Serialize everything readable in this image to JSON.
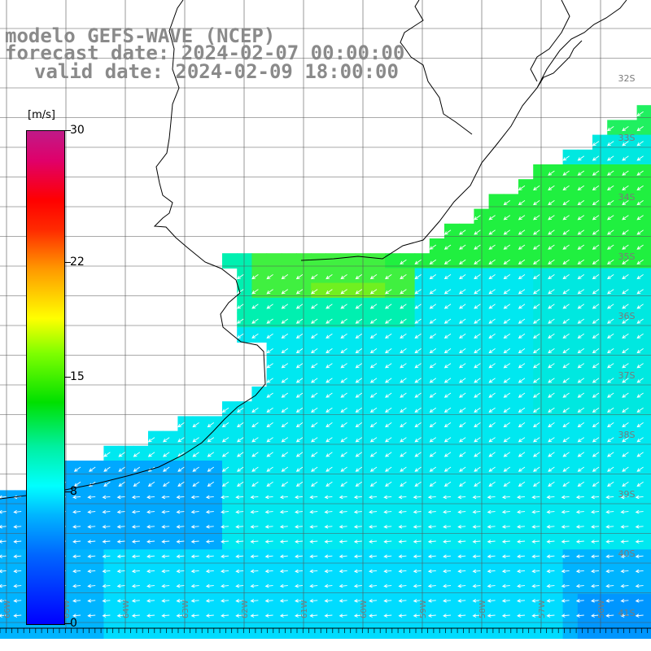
{
  "header": {
    "line1": "modelo GEFS-WAVE (NCEP)",
    "line2": "forecast date: 2024-02-07 00:00:00",
    "line3": "valid date: 2024-02-09 18:00:00"
  },
  "colorbar": {
    "unit": "[m/s]",
    "ticks": [
      {
        "label": "30",
        "value": 30
      },
      {
        "label": "22",
        "value": 22
      },
      {
        "label": "15",
        "value": 15
      },
      {
        "label": "8",
        "value": 8
      },
      {
        "label": "0",
        "value": 0
      }
    ],
    "range": [
      0,
      30
    ]
  },
  "grid": {
    "lat_labels": [
      "32S",
      "33S",
      "34S",
      "35S",
      "36S",
      "37S",
      "38S",
      "39S",
      "40S",
      "41S"
    ],
    "lon_labels": [
      "66W",
      "65W",
      "64W",
      "63W",
      "62W",
      "61W",
      "60W",
      "59W",
      "58W",
      "57W",
      "56W"
    ]
  },
  "colors": {
    "land": "#ffffff",
    "coastline": "#000000",
    "gridline": "#000000",
    "arrow": "#ffffff",
    "label": "#8a8a8a"
  },
  "field": {
    "description_free": true,
    "dominant_direction": "southwest",
    "typical_speed_ms": 8
  }
}
